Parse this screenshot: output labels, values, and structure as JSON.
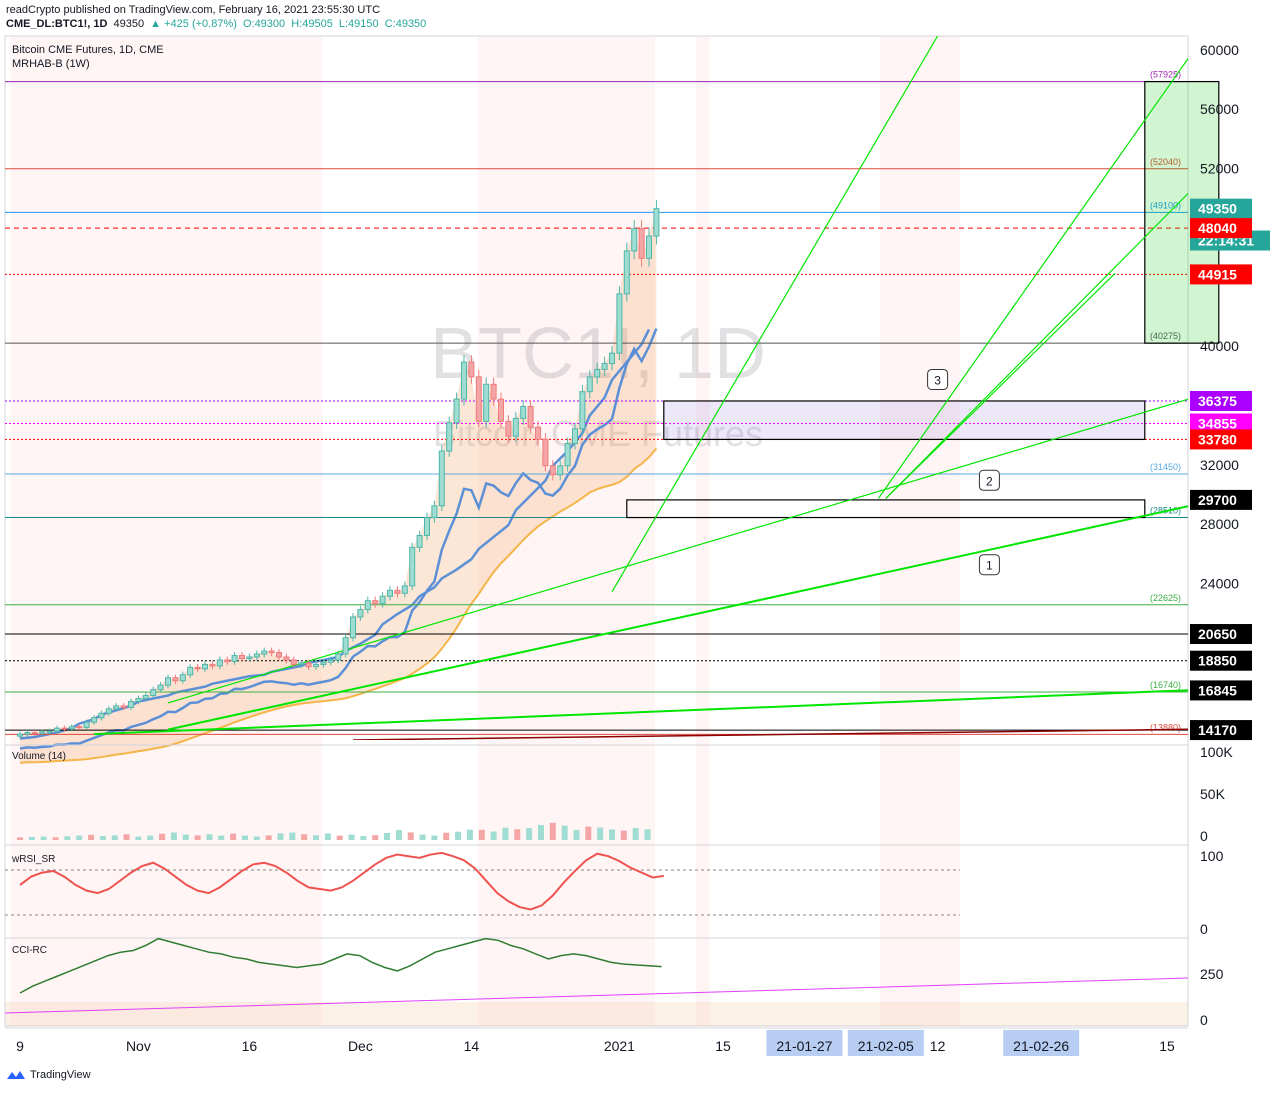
{
  "header": {
    "publisher": "readCrypto published on TradingView.com, February 16, 2021 23:55:30 UTC",
    "ticker": "CME_DL:BTC1!, 1D",
    "last": "49350",
    "change": "▲ +425 (+0.87%)",
    "open": "O:49300",
    "high": "H:49505",
    "low": "L:49150",
    "close": "C:49350"
  },
  "legend": {
    "title": "Bitcoin CME Futures, 1D, CME",
    "indicator": "MRHAB-B (1W)"
  },
  "watermark": {
    "symbol": "BTC1!, 1D",
    "name": "Bitcoin CME Futures"
  },
  "footer": {
    "brand": "TradingView"
  },
  "colors": {
    "up": "#26a69a",
    "down": "#ef5350",
    "blue": "#5b8fd6",
    "orange": "#f4b54a",
    "green": "#00e600",
    "purple": "#9c27b0",
    "magenta": "#e040fb",
    "red": "#ff0000"
  },
  "chart_data": [
    {
      "type": "candlestick",
      "title": "Bitcoin CME Futures, 1D, CME",
      "ylim": [
        13500,
        61000
      ],
      "y_ticks": [
        60000,
        56000,
        52000,
        40000,
        32000,
        28000,
        24000
      ],
      "x_ticks": [
        {
          "label": "9",
          "x": 0
        },
        {
          "label": "Nov",
          "x": 16
        },
        {
          "label": "16",
          "x": 31
        },
        {
          "label": "Dec",
          "x": 46
        },
        {
          "label": "14",
          "x": 61
        },
        {
          "label": "2021",
          "x": 81
        },
        {
          "label": "15",
          "x": 95
        },
        {
          "label": "21-01-27",
          "x": 106,
          "highlight": true
        },
        {
          "label": "21-02-05",
          "x": 117,
          "highlight": true
        },
        {
          "label": "12",
          "x": 124
        },
        {
          "label": "21-02-26",
          "x": 138,
          "highlight": true
        },
        {
          "label": "15",
          "x": 155
        }
      ],
      "price_badges": [
        {
          "value": "49350",
          "bg": "#26a69a",
          "fg": "#ffffff"
        },
        {
          "value": "22:14:31",
          "bg": "#26a69a",
          "fg": "#ffffff",
          "at": 47200
        },
        {
          "value": "48040",
          "bg": "#ff0000",
          "fg": "#ffffff"
        },
        {
          "value": "44915",
          "bg": "#ff0000",
          "fg": "#ffffff"
        },
        {
          "value": "36375",
          "bg": "#aa00ff",
          "fg": "#ffffff"
        },
        {
          "value": "34855",
          "bg": "#ff00ff",
          "fg": "#ffffff"
        },
        {
          "value": "33780",
          "bg": "#ff0000",
          "fg": "#ffffff"
        },
        {
          "value": "29700",
          "bg": "#000000",
          "fg": "#ffffff"
        },
        {
          "value": "20650",
          "bg": "#000000",
          "fg": "#ffffff"
        },
        {
          "value": "18850",
          "bg": "#000000",
          "fg": "#ffffff"
        },
        {
          "value": "16845",
          "bg": "#000000",
          "fg": "#ffffff"
        },
        {
          "value": "14170",
          "bg": "#000000",
          "fg": "#ffffff"
        }
      ],
      "hlines": [
        {
          "y": 57925,
          "label": "(57925)",
          "color": "#9c27b0",
          "dash": ""
        },
        {
          "y": 52040,
          "label": "(52040)",
          "color": "#e0483e",
          "dash": ""
        },
        {
          "y": 49100,
          "label": "(49100)",
          "color": "#2196f3",
          "dash": ""
        },
        {
          "y": 48040,
          "label": "",
          "color": "#ff0000",
          "dash": "5,4"
        },
        {
          "y": 44915,
          "label": "",
          "color": "#ff0000",
          "dash": "2,2"
        },
        {
          "y": 40275,
          "label": "(40275)",
          "color": "#555555",
          "dash": ""
        },
        {
          "y": 36375,
          "label": "",
          "color": "#aa00ff",
          "dash": "2,2"
        },
        {
          "y": 34855,
          "label": "",
          "color": "#ff00ff",
          "dash": "2,2"
        },
        {
          "y": 33780,
          "label": "",
          "color": "#ff0000",
          "dash": "2,2"
        },
        {
          "y": 31450,
          "label": "(31450)",
          "color": "#5ba8e0",
          "dash": ""
        },
        {
          "y": 28510,
          "label": "(28510)",
          "color": "#1a8a8a",
          "dash": ""
        },
        {
          "y": 22625,
          "label": "(22625)",
          "color": "#3cb043",
          "dash": ""
        },
        {
          "y": 20650,
          "label": "",
          "color": "#000000",
          "dash": ""
        },
        {
          "y": 18850,
          "label": "",
          "color": "#000000",
          "dash": "2,2"
        },
        {
          "y": 16740,
          "label": "(16740)",
          "color": "#3cb043",
          "dash": ""
        },
        {
          "y": 14170,
          "label": "",
          "color": "#000000",
          "dash": ""
        },
        {
          "y": 13880,
          "label": "(13880)",
          "color": "#e0483e",
          "dash": ""
        }
      ],
      "boxes": [
        {
          "x1": 87,
          "x2": 152,
          "y1": 33780,
          "y2": 36375,
          "fill": "rgba(150,130,220,0.18)",
          "stroke": "#000"
        },
        {
          "x1": 82,
          "x2": 152,
          "y1": 28510,
          "y2": 29700,
          "fill": "none",
          "stroke": "#000"
        },
        {
          "x1": 152,
          "x2": 162,
          "y1": 40275,
          "y2": 57925,
          "fill": "rgba(0,200,0,0.18)",
          "stroke": "#000"
        }
      ],
      "callouts": [
        {
          "label": "1",
          "x": 131,
          "y": 26000
        },
        {
          "label": "2",
          "x": 131,
          "y": 31700
        },
        {
          "label": "3",
          "x": 124,
          "y": 38500
        }
      ],
      "trendlines": [
        {
          "x1": 20,
          "y1": 14200,
          "x2": 170,
          "y2": 30600,
          "color": "#00e600",
          "w": 2
        },
        {
          "x1": 10,
          "y1": 13900,
          "x2": 170,
          "y2": 17100,
          "color": "#00e600",
          "w": 2
        },
        {
          "x1": 20,
          "y1": 16000,
          "x2": 170,
          "y2": 38300,
          "color": "#00e600",
          "w": 1.2
        },
        {
          "x1": 80,
          "y1": 23500,
          "x2": 124,
          "y2": 61000,
          "color": "#00e600",
          "w": 1.2
        },
        {
          "x1": 116,
          "y1": 29800,
          "x2": 160,
          "y2": 61000,
          "color": "#00e600",
          "w": 1.2
        },
        {
          "x1": 117,
          "y1": 29800,
          "x2": 171,
          "y2": 57000,
          "color": "#00e600",
          "w": 1.2
        },
        {
          "x1": 117,
          "y1": 29800,
          "x2": 148,
          "y2": 45000,
          "color": "#00e600",
          "w": 1.2
        },
        {
          "x1": 45,
          "y1": 13500,
          "x2": 170,
          "y2": 14300,
          "color": "#8b0000",
          "w": 1.5
        }
      ],
      "series": [
        {
          "name": "close",
          "values": [
            13900,
            14000,
            13950,
            14050,
            14100,
            14300,
            14250,
            14400,
            14350,
            14700,
            15000,
            15300,
            15600,
            15800,
            15700,
            16100,
            16300,
            16500,
            16900,
            17200,
            17700,
            17500,
            17900,
            18400,
            18300,
            18600,
            18500,
            18900,
            18800,
            19200,
            19000,
            19100,
            19300,
            19500,
            19400,
            19100,
            18900,
            18600,
            18700,
            18450,
            18600,
            18750,
            18900,
            19300,
            20400,
            21800,
            22300,
            22900,
            22700,
            23200,
            23600,
            23400,
            23900,
            26500,
            27300,
            28500,
            29300,
            33000,
            34900,
            36500,
            39000,
            38000,
            35000,
            37500,
            36500,
            35000,
            34000,
            35200,
            36000,
            34600,
            33800,
            32000,
            31400,
            32000,
            33500,
            34500,
            37000,
            38000,
            38500,
            38900,
            39600,
            43600,
            46500,
            48000,
            46000,
            47500,
            49350
          ]
        },
        {
          "name": "weekly_level",
          "values": [
            13600,
            13700,
            13800,
            14000,
            14300,
            14600,
            14900,
            15200,
            15500,
            15800,
            16100,
            16300,
            16500,
            16700,
            16900,
            17100,
            17300,
            17500,
            17700,
            17800,
            17900,
            18100,
            18300,
            18500,
            18700,
            18900,
            19100,
            19500,
            20000,
            20600,
            21300,
            22000,
            22600,
            23200,
            23800,
            24400,
            25000,
            25700,
            26400,
            27200,
            28000,
            29000,
            30000,
            31000,
            32000,
            33000,
            34200,
            35400,
            36600,
            37800,
            39000,
            40200,
            41200
          ]
        }
      ]
    },
    {
      "type": "bar",
      "title": "Volume (14)",
      "ylim": [
        0,
        110000
      ],
      "y_ticks": [
        "100K",
        "50K",
        "0"
      ],
      "series": [
        {
          "name": "Volume",
          "values": [
            3000,
            3500,
            4000,
            3200,
            4200,
            5200,
            6000,
            4600,
            5400,
            6600,
            4000,
            5100,
            7300,
            8700,
            6300,
            5300,
            6600,
            5100,
            7400,
            5100,
            4000,
            5300,
            7700,
            8600,
            6600,
            5400,
            7500,
            5100,
            6300,
            4600,
            5600,
            8100,
            11500,
            8800,
            6300,
            5100,
            8400,
            9600,
            12000,
            11800,
            9800,
            14200,
            12400,
            13800,
            17400,
            19900,
            16500,
            11600,
            15500,
            14400,
            12200,
            10900,
            13800,
            12300
          ]
        }
      ]
    },
    {
      "type": "line",
      "title": "wRSI_SR",
      "ylim": [
        0,
        100
      ],
      "y_ticks": [
        "100",
        "0"
      ],
      "series": [
        {
          "name": "wRSI",
          "values": [
            55,
            65,
            70,
            72,
            65,
            55,
            48,
            45,
            50,
            60,
            70,
            78,
            82,
            75,
            65,
            55,
            48,
            45,
            52,
            62,
            72,
            80,
            82,
            78,
            70,
            60,
            52,
            50,
            48,
            52,
            60,
            70,
            80,
            88,
            92,
            90,
            88,
            92,
            94,
            90,
            85,
            75,
            60,
            45,
            35,
            28,
            25,
            30,
            42,
            58,
            72,
            85,
            93,
            90,
            84,
            76,
            70,
            64,
            66
          ]
        }
      ]
    },
    {
      "type": "line",
      "title": "CCI-RC",
      "y_ticks": [
        "250",
        "0"
      ],
      "series": [
        {
          "name": "CCI",
          "values": [
            100,
            140,
            170,
            200,
            230,
            260,
            290,
            320,
            340,
            350,
            380,
            420,
            400,
            380,
            360,
            340,
            330,
            310,
            300,
            280,
            270,
            260,
            250,
            260,
            270,
            300,
            330,
            320,
            280,
            250,
            230,
            260,
            300,
            340,
            360,
            380,
            400,
            420,
            410,
            380,
            360,
            330,
            300,
            320,
            330,
            320,
            300,
            280,
            270,
            265,
            260,
            255
          ]
        }
      ]
    }
  ]
}
